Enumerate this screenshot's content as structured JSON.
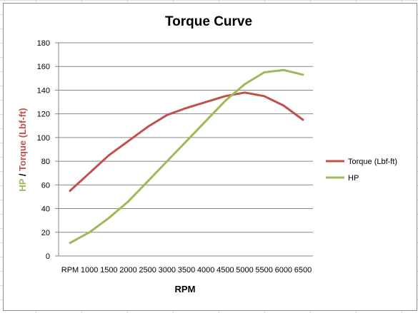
{
  "chart_data": {
    "type": "line",
    "title": "Torque Curve",
    "xlabel": "RPM",
    "ylabel_parts": {
      "hp": "HP",
      "separator": " / ",
      "torque": "Torque (Lbf-ft)"
    },
    "categories": [
      "RPM",
      "1000",
      "1500",
      "2000",
      "2500",
      "3000",
      "3500",
      "4000",
      "4500",
      "5000",
      "5500",
      "6000",
      "6500"
    ],
    "ylim": [
      0,
      180
    ],
    "yticks": [
      0,
      20,
      40,
      60,
      80,
      100,
      120,
      140,
      160,
      180
    ],
    "grid": true,
    "legend_position": "right",
    "series": [
      {
        "name": "Torque (Lbf-ft)",
        "color": "#c0504d",
        "values": [
          55,
          70,
          85,
          97,
          109,
          119,
          125,
          130,
          135,
          138,
          135,
          127,
          115
        ]
      },
      {
        "name": "HP",
        "color": "#9bbb59",
        "values": [
          11,
          20,
          32,
          46,
          63,
          80,
          97,
          114,
          131,
          145,
          155,
          157,
          153
        ]
      }
    ]
  }
}
